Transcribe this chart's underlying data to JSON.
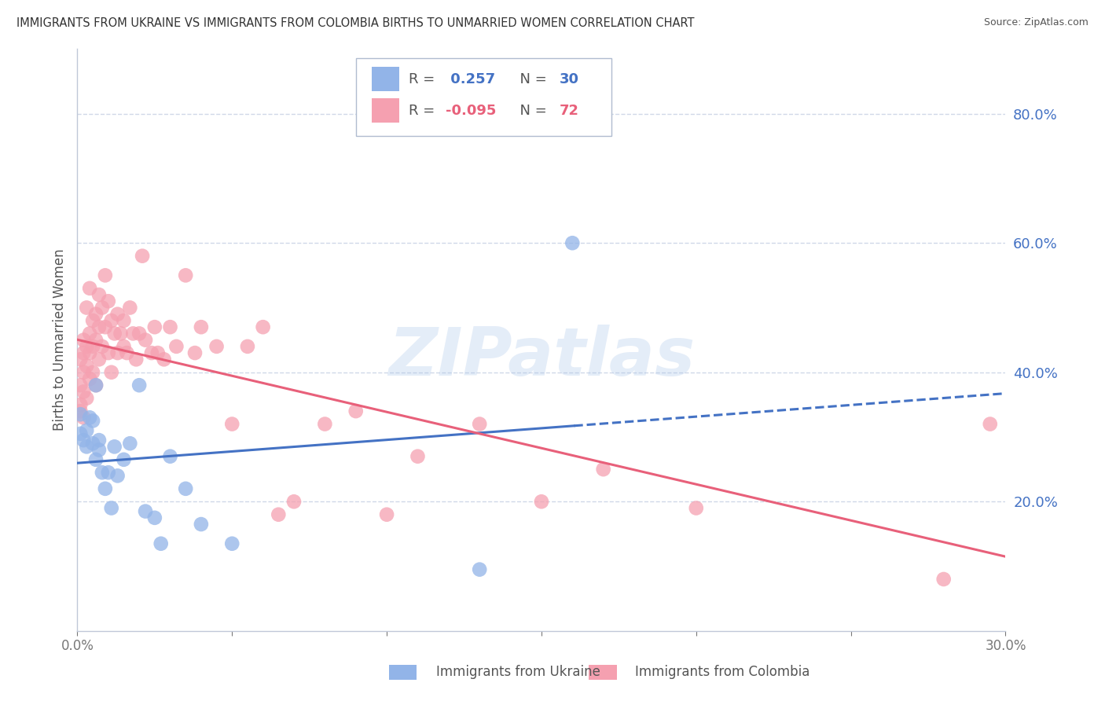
{
  "title": "IMMIGRANTS FROM UKRAINE VS IMMIGRANTS FROM COLOMBIA BIRTHS TO UNMARRIED WOMEN CORRELATION CHART",
  "source": "Source: ZipAtlas.com",
  "ylabel": "Births to Unmarried Women",
  "xlabel_ukraine": "Immigrants from Ukraine",
  "xlabel_colombia": "Immigrants from Colombia",
  "xlim": [
    0.0,
    0.3
  ],
  "ylim": [
    0.0,
    0.9
  ],
  "xtick_labels": [
    "0.0%",
    "",
    "",
    "",
    "",
    "",
    "30.0%"
  ],
  "yticks_right": [
    0.2,
    0.4,
    0.6,
    0.8
  ],
  "ytick_right_labels": [
    "20.0%",
    "40.0%",
    "60.0%",
    "80.0%"
  ],
  "ukraine_R": 0.257,
  "ukraine_N": 30,
  "colombia_R": -0.095,
  "colombia_N": 72,
  "ukraine_color": "#92b4e8",
  "colombia_color": "#f5a0b0",
  "ukraine_line_color": "#4472c4",
  "colombia_line_color": "#e8607a",
  "grid_color": "#d0d8e8",
  "watermark": "ZIPatlas",
  "background_color": "#ffffff",
  "title_color": "#333333",
  "right_axis_color": "#4472c4",
  "ukraine_x": [
    0.001,
    0.001,
    0.002,
    0.003,
    0.003,
    0.004,
    0.005,
    0.005,
    0.006,
    0.006,
    0.007,
    0.007,
    0.008,
    0.009,
    0.01,
    0.011,
    0.012,
    0.013,
    0.015,
    0.017,
    0.02,
    0.022,
    0.025,
    0.027,
    0.03,
    0.035,
    0.04,
    0.05,
    0.13,
    0.16
  ],
  "ukraine_y": [
    0.335,
    0.305,
    0.295,
    0.31,
    0.285,
    0.33,
    0.29,
    0.325,
    0.265,
    0.38,
    0.295,
    0.28,
    0.245,
    0.22,
    0.245,
    0.19,
    0.285,
    0.24,
    0.265,
    0.29,
    0.38,
    0.185,
    0.175,
    0.135,
    0.27,
    0.22,
    0.165,
    0.135,
    0.095,
    0.6
  ],
  "colombia_x": [
    0.001,
    0.001,
    0.001,
    0.001,
    0.002,
    0.002,
    0.002,
    0.002,
    0.002,
    0.003,
    0.003,
    0.003,
    0.003,
    0.004,
    0.004,
    0.004,
    0.004,
    0.005,
    0.005,
    0.005,
    0.006,
    0.006,
    0.006,
    0.007,
    0.007,
    0.007,
    0.008,
    0.008,
    0.009,
    0.009,
    0.01,
    0.01,
    0.011,
    0.011,
    0.012,
    0.013,
    0.013,
    0.014,
    0.015,
    0.015,
    0.016,
    0.017,
    0.018,
    0.019,
    0.02,
    0.021,
    0.022,
    0.024,
    0.025,
    0.026,
    0.028,
    0.03,
    0.032,
    0.035,
    0.038,
    0.04,
    0.045,
    0.05,
    0.055,
    0.06,
    0.065,
    0.07,
    0.08,
    0.09,
    0.1,
    0.11,
    0.13,
    0.15,
    0.17,
    0.2,
    0.28,
    0.295
  ],
  "colombia_y": [
    0.38,
    0.35,
    0.42,
    0.34,
    0.43,
    0.4,
    0.37,
    0.45,
    0.33,
    0.44,
    0.41,
    0.36,
    0.5,
    0.46,
    0.39,
    0.53,
    0.43,
    0.48,
    0.44,
    0.4,
    0.49,
    0.45,
    0.38,
    0.52,
    0.47,
    0.42,
    0.5,
    0.44,
    0.55,
    0.47,
    0.51,
    0.43,
    0.48,
    0.4,
    0.46,
    0.49,
    0.43,
    0.46,
    0.44,
    0.48,
    0.43,
    0.5,
    0.46,
    0.42,
    0.46,
    0.58,
    0.45,
    0.43,
    0.47,
    0.43,
    0.42,
    0.47,
    0.44,
    0.55,
    0.43,
    0.47,
    0.44,
    0.32,
    0.44,
    0.47,
    0.18,
    0.2,
    0.32,
    0.34,
    0.18,
    0.27,
    0.32,
    0.2,
    0.25,
    0.19,
    0.08,
    0.32
  ]
}
